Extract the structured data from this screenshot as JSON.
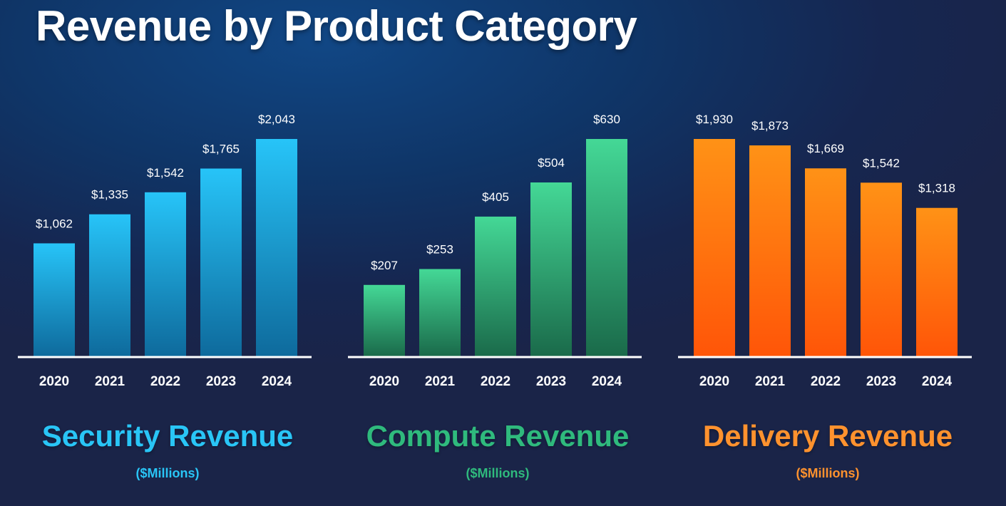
{
  "page": {
    "title": "Revenue by Product Category"
  },
  "colors": {
    "security": {
      "title": "#29c5f6",
      "bar_top": "#27c4f8",
      "bar_bottom": "#0e6a9c"
    },
    "compute": {
      "title": "#2fba7d",
      "bar_top": "#44d896",
      "bar_bottom": "#1a6a4a"
    },
    "delivery": {
      "title": "#ff922e",
      "bar_top": "#ff9216",
      "bar_bottom": "#ff5508"
    }
  },
  "chart_data": [
    {
      "id": "security",
      "type": "bar",
      "title": "Security Revenue",
      "units": "($Millions)",
      "categories": [
        "2020",
        "2021",
        "2022",
        "2023",
        "2024"
      ],
      "values": [
        1062,
        1335,
        1542,
        1765,
        2043
      ],
      "value_labels": [
        "$1,062",
        "$1,335",
        "$1,542",
        "$1,765",
        "$2,043"
      ],
      "ylim": [
        0,
        2043
      ],
      "grid": false
    },
    {
      "id": "compute",
      "type": "bar",
      "title": "Compute Revenue",
      "units": "($Millions)",
      "categories": [
        "2020",
        "2021",
        "2022",
        "2023",
        "2024"
      ],
      "values": [
        207,
        253,
        405,
        504,
        630
      ],
      "value_labels": [
        "$207",
        "$253",
        "$405",
        "$504",
        "$630"
      ],
      "ylim": [
        0,
        630
      ],
      "grid": false
    },
    {
      "id": "delivery",
      "type": "bar",
      "title": "Delivery Revenue",
      "units": "($Millions)",
      "categories": [
        "2020",
        "2021",
        "2022",
        "2023",
        "2024"
      ],
      "values": [
        1930,
        1873,
        1669,
        1542,
        1318
      ],
      "value_labels": [
        "$1,930",
        "$1,873",
        "$1,669",
        "$1,542",
        "$1,318"
      ],
      "ylim": [
        0,
        1930
      ],
      "grid": false
    }
  ]
}
